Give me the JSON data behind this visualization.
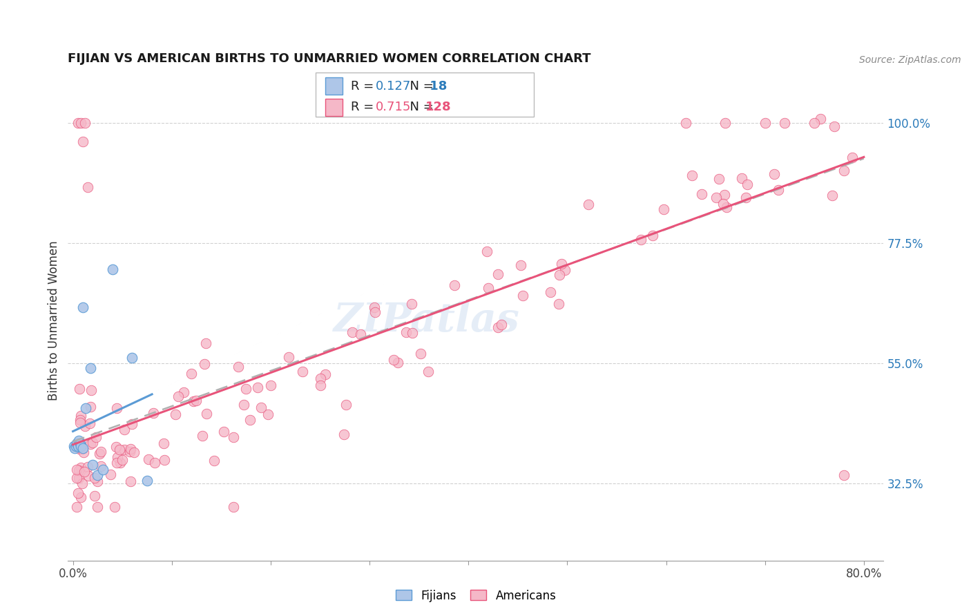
{
  "title": "FIJIAN VS AMERICAN BIRTHS TO UNMARRIED WOMEN CORRELATION CHART",
  "source": "Source: ZipAtlas.com",
  "ylabel": "Births to Unmarried Women",
  "ylabel_right_ticks": [
    "32.5%",
    "55.0%",
    "77.5%",
    "100.0%"
  ],
  "ylabel_right_vals": [
    0.325,
    0.55,
    0.775,
    1.0
  ],
  "xlim": [
    -0.005,
    0.82
  ],
  "ylim": [
    0.18,
    1.08
  ],
  "background_color": "#ffffff",
  "fijian_color": "#aec6e8",
  "american_color": "#f5b8c8",
  "fijian_edge_color": "#5b9bd5",
  "american_edge_color": "#e8537a",
  "fijian_line_color": "#5b9bd5",
  "american_line_color": "#e8537a",
  "dashed_line_color": "#b0b0b0",
  "legend_fijian_R": "0.127",
  "legend_fijian_N": "18",
  "legend_american_R": "0.715",
  "legend_american_N": "128",
  "watermark_text": "ZIPatlas",
  "grid_color": "#d0d0d0",
  "title_fontsize": 13,
  "axis_label_fontsize": 12,
  "legend_fontsize": 13
}
